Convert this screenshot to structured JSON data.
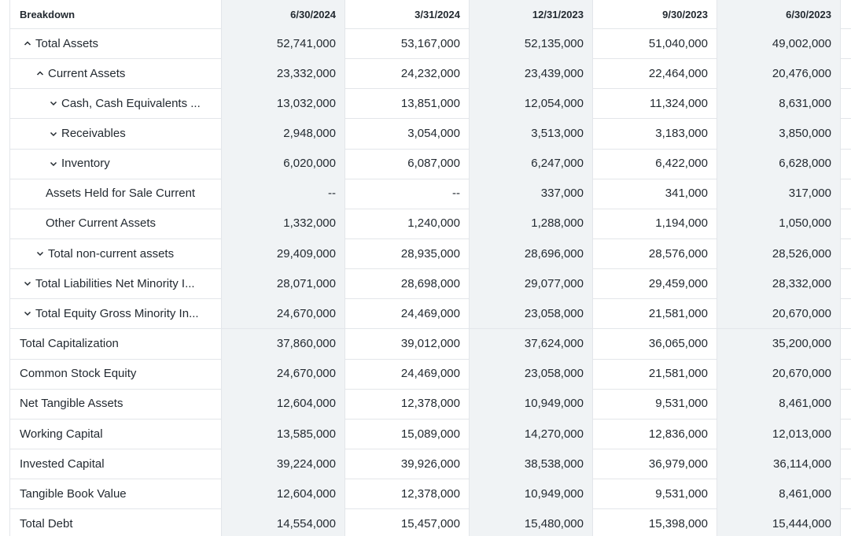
{
  "table": {
    "header": [
      "Breakdown",
      "6/30/2024",
      "3/31/2024",
      "12/31/2023",
      "9/30/2023",
      "6/30/2023"
    ],
    "rows": [
      [
        "Total Assets",
        "52,741,000",
        "53,167,000",
        "52,135,000",
        "51,040,000",
        "49,002,000"
      ],
      [
        "Current Assets",
        "23,332,000",
        "24,232,000",
        "23,439,000",
        "22,464,000",
        "20,476,000"
      ],
      [
        "Cash, Cash Equivalents ...",
        "13,032,000",
        "13,851,000",
        "12,054,000",
        "11,324,000",
        "8,631,000"
      ],
      [
        "Receivables",
        "2,948,000",
        "3,054,000",
        "3,513,000",
        "3,183,000",
        "3,850,000"
      ],
      [
        "Inventory",
        "6,020,000",
        "6,087,000",
        "6,247,000",
        "6,422,000",
        "6,628,000"
      ],
      [
        "Assets Held for Sale Current",
        "--",
        "--",
        "337,000",
        "341,000",
        "317,000"
      ],
      [
        "Other Current Assets",
        "1,332,000",
        "1,240,000",
        "1,288,000",
        "1,194,000",
        "1,050,000"
      ],
      [
        "Total non-current assets",
        "29,409,000",
        "28,935,000",
        "28,696,000",
        "28,576,000",
        "28,526,000"
      ],
      [
        "Total Liabilities Net Minority I...",
        "28,071,000",
        "28,698,000",
        "29,077,000",
        "29,459,000",
        "28,332,000"
      ],
      [
        "Total Equity Gross Minority In...",
        "24,670,000",
        "24,469,000",
        "23,058,000",
        "21,581,000",
        "20,670,000"
      ],
      [
        "Total Capitalization",
        "37,860,000",
        "39,012,000",
        "37,624,000",
        "36,065,000",
        "35,200,000"
      ],
      [
        "Common Stock Equity",
        "24,670,000",
        "24,469,000",
        "23,058,000",
        "21,581,000",
        "20,670,000"
      ],
      [
        "Net Tangible Assets",
        "12,604,000",
        "12,378,000",
        "10,949,000",
        "9,531,000",
        "8,461,000"
      ],
      [
        "Working Capital",
        "13,585,000",
        "15,089,000",
        "14,270,000",
        "12,836,000",
        "12,013,000"
      ],
      [
        "Invested Capital",
        "39,224,000",
        "39,926,000",
        "38,538,000",
        "36,979,000",
        "36,114,000"
      ],
      [
        "Tangible Book Value",
        "12,604,000",
        "12,378,000",
        "10,949,000",
        "9,531,000",
        "8,461,000"
      ],
      [
        "Total Debt",
        "14,554,000",
        "15,457,000",
        "15,480,000",
        "15,398,000",
        "15,444,000"
      ]
    ]
  }
}
